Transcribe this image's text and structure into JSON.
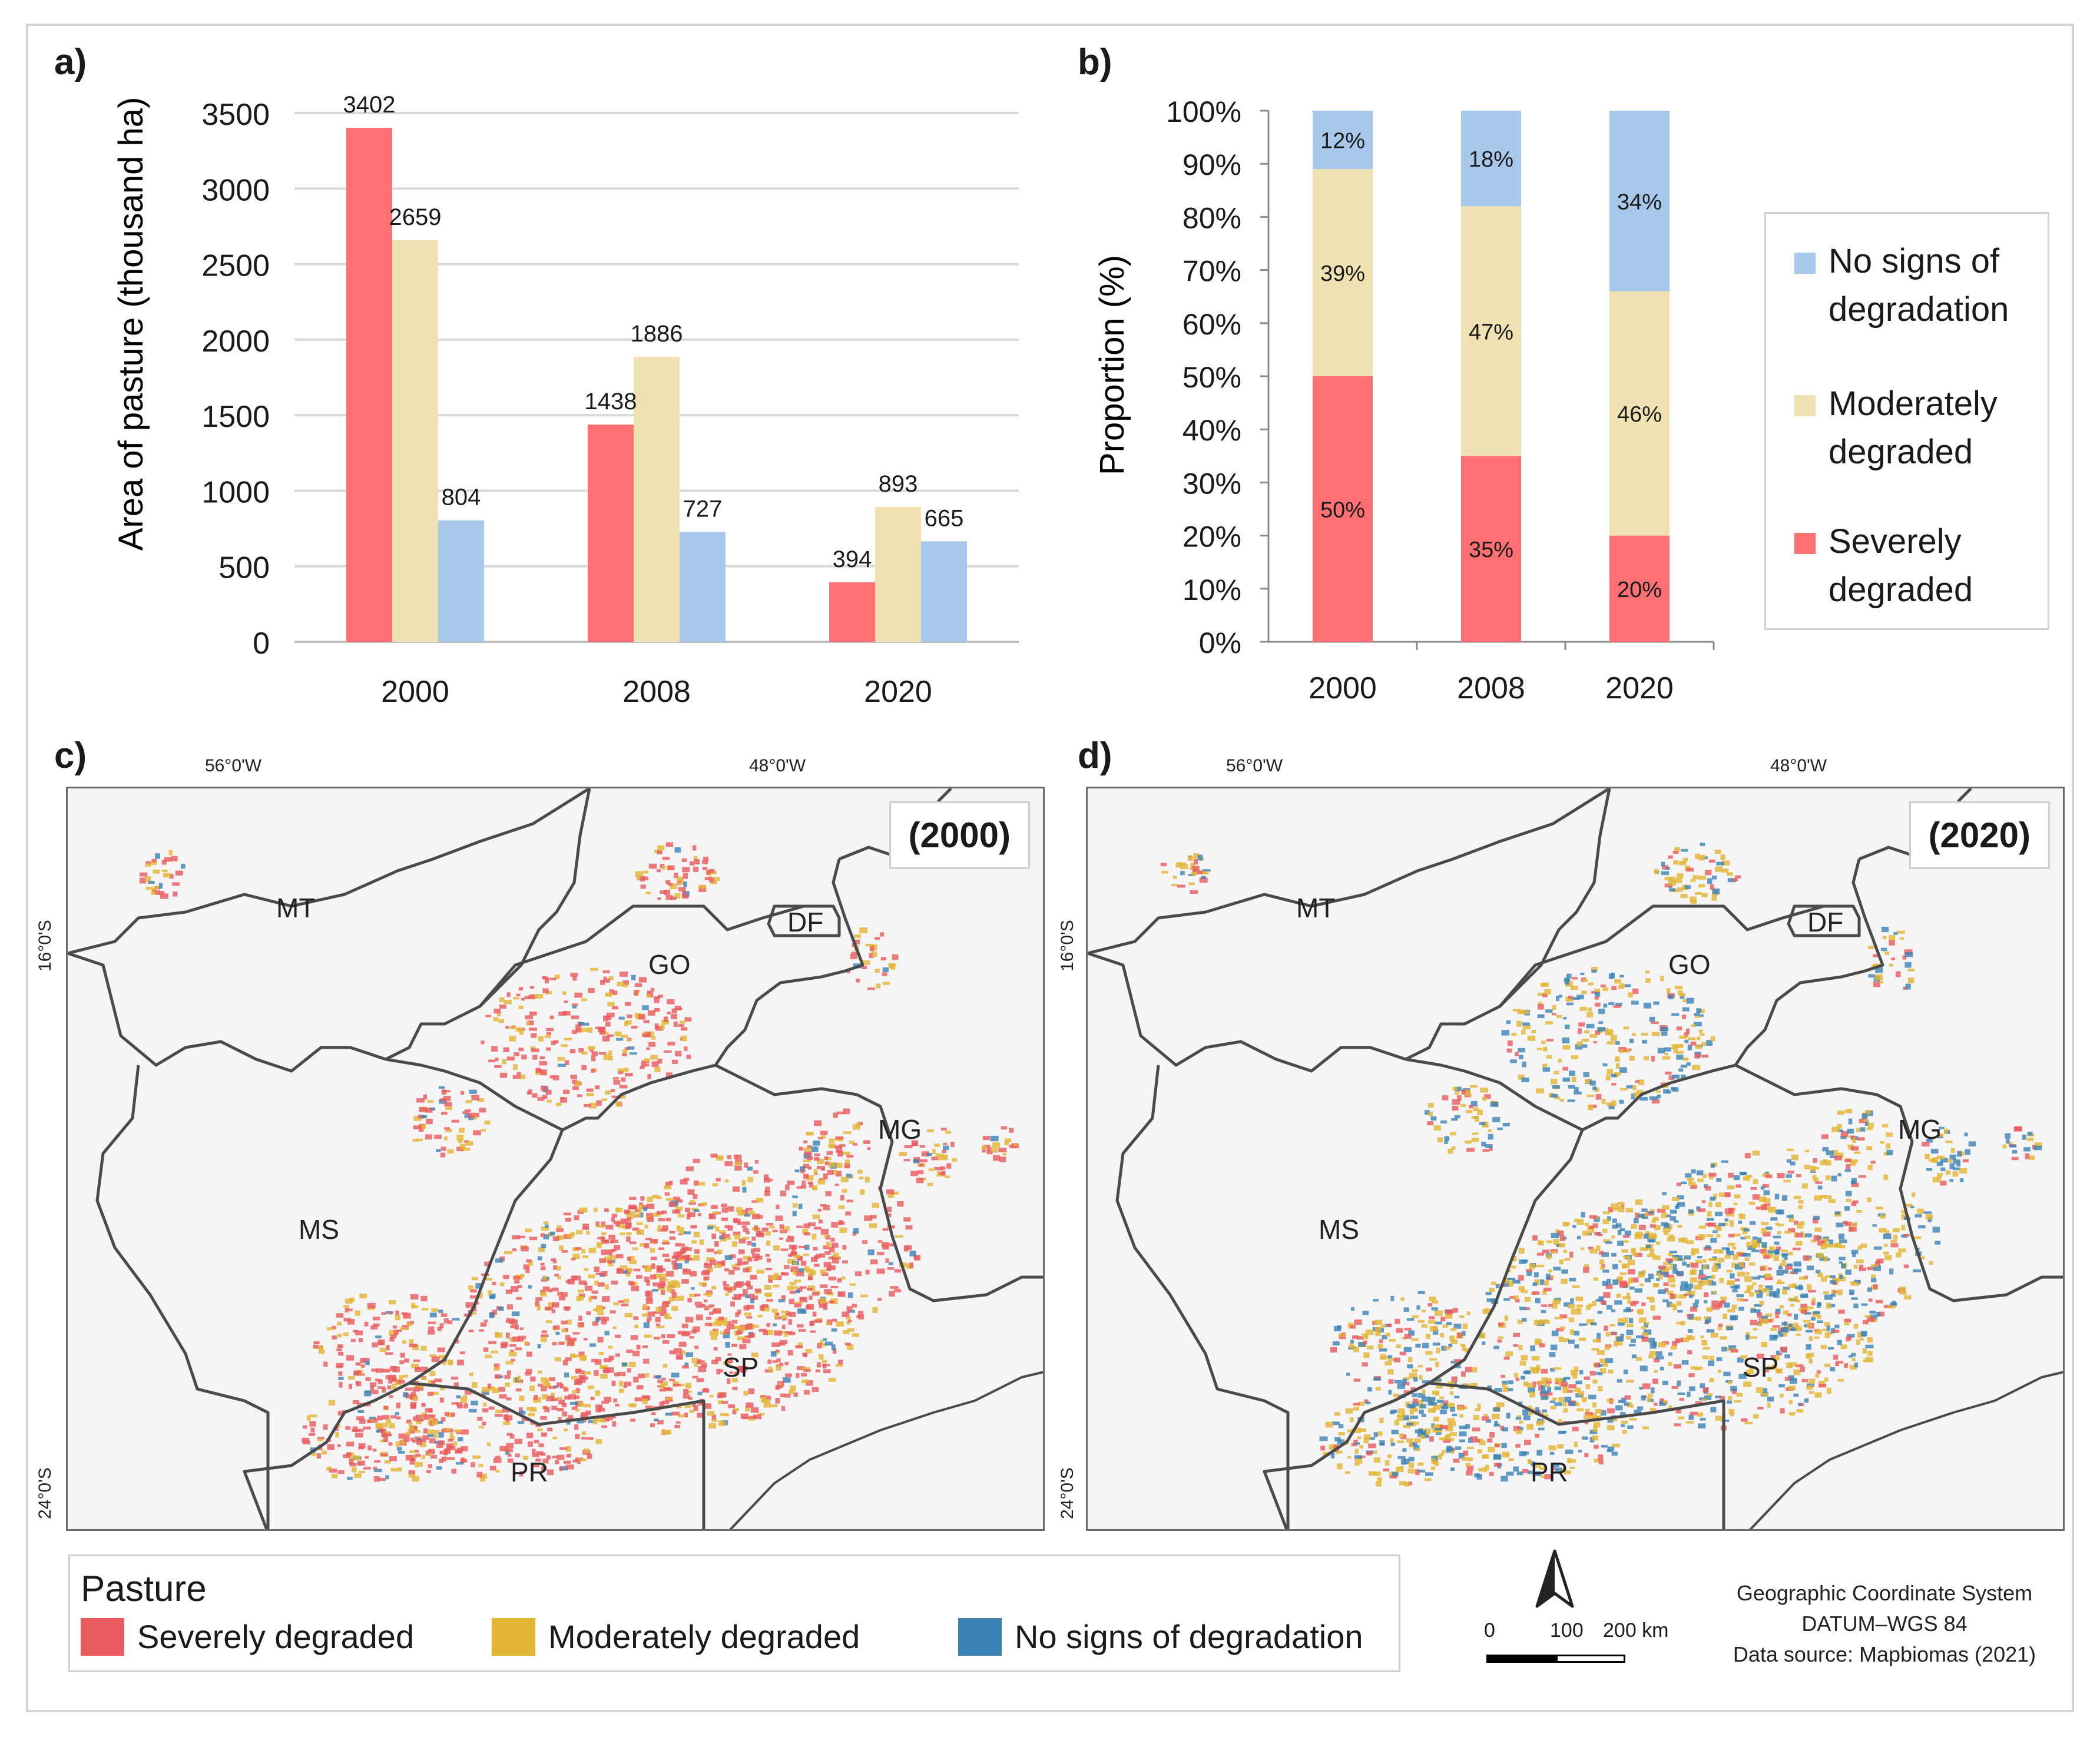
{
  "panels": {
    "a": "a)",
    "b": "b)",
    "c": "c)",
    "d": "d)"
  },
  "colors": {
    "severe": "#ff7074",
    "moderate": "#f1e2b4",
    "none": "#a7c8eb",
    "map_severe": "#e85a5c",
    "map_moderate": "#e3b535",
    "map_none": "#3b82b4"
  },
  "chart_data": [
    {
      "type": "bar",
      "title": "",
      "ylabel": "Area of pasture (thousand ha)",
      "xlabel": "",
      "categories": [
        "2000",
        "2008",
        "2020"
      ],
      "ylim": [
        0,
        3500
      ],
      "yticks": [
        "0",
        "500",
        "1000",
        "1500",
        "2000",
        "2500",
        "3000",
        "3500"
      ],
      "grid": true,
      "series": [
        {
          "name": "Severely degraded",
          "values": [
            3402,
            1438,
            394
          ]
        },
        {
          "name": "Moderately degraded",
          "values": [
            2659,
            1886,
            893
          ]
        },
        {
          "name": "No signs of degradation",
          "values": [
            804,
            727,
            665
          ]
        }
      ],
      "data_labels": [
        [
          "3402",
          "1438",
          "394"
        ],
        [
          "2659",
          "1886",
          "893"
        ],
        [
          "804",
          "727",
          "665"
        ]
      ]
    },
    {
      "type": "bar",
      "stacked": true,
      "title": "",
      "ylabel": "Proportion (%)",
      "xlabel": "",
      "categories": [
        "2000",
        "2008",
        "2020"
      ],
      "ylim": [
        0,
        100
      ],
      "yticks": [
        "0%",
        "10%",
        "20%",
        "30%",
        "40%",
        "50%",
        "60%",
        "70%",
        "80%",
        "90%",
        "100%"
      ],
      "series": [
        {
          "name": "Severely degraded",
          "values": [
            50,
            35,
            20
          ]
        },
        {
          "name": "Moderately degraded",
          "values": [
            39,
            47,
            46
          ]
        },
        {
          "name": "No signs of degradation",
          "values": [
            12,
            18,
            34
          ]
        }
      ],
      "data_labels": [
        [
          "50%",
          "35%",
          "20%"
        ],
        [
          "39%",
          "47%",
          "46%"
        ],
        [
          "12%",
          "18%",
          "34%"
        ]
      ],
      "legend": {
        "placement": "right",
        "entries": [
          {
            "line1": "No signs of",
            "line2": "degradation",
            "key": "none"
          },
          {
            "line1": "Moderately",
            "line2": "degraded",
            "key": "moderate"
          },
          {
            "line1": "Severely",
            "line2": "degraded",
            "key": "severe"
          }
        ]
      }
    }
  ],
  "maps": {
    "lon_labels": [
      "56°0'W",
      "48°0'W"
    ],
    "lat_labels": [
      "16°0'S",
      "24°0'S"
    ],
    "states": [
      "MT",
      "GO",
      "DF",
      "MG",
      "MS",
      "SP",
      "PR"
    ],
    "map_c_year": "(2000)",
    "map_d_year": "(2020)",
    "legend": {
      "title": "Pasture",
      "items": [
        "Severely degraded",
        "Moderately degraded",
        "No signs of degradation"
      ]
    },
    "scale": {
      "labels": [
        "0",
        "100",
        "200 km"
      ]
    },
    "credits": [
      "Geographic Coordinate System",
      "DATUM–WGS 84",
      "Data source: Mapbiomas (2021)"
    ]
  }
}
